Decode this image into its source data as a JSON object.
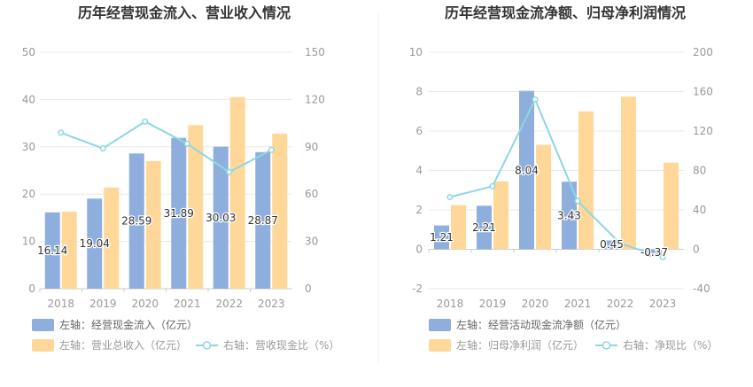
{
  "charts": [
    {
      "title": "历年经营现金流入、营业收入情况",
      "chart_data": {
        "type": "bar",
        "categories": [
          "2018",
          "2019",
          "2020",
          "2021",
          "2022",
          "2023"
        ],
        "y_left": {
          "min": 0,
          "max": 50,
          "ticks": [
            0,
            10,
            20,
            30,
            40,
            50
          ]
        },
        "y_right": {
          "min": 0,
          "max": 150,
          "ticks": [
            0,
            30,
            60,
            90,
            120,
            150
          ]
        },
        "series": [
          {
            "name": "左轴：经营现金流入（亿元）",
            "type": "bar",
            "axis": "left",
            "color": "#8eaede",
            "values": [
              16.14,
              19.04,
              28.59,
              31.89,
              30.03,
              28.87
            ],
            "labels_shown": true
          },
          {
            "name": "左轴：营业总收入（亿元）",
            "type": "bar",
            "axis": "left",
            "color": "#ffd899",
            "values": [
              16.3,
              21.4,
              27.0,
              34.6,
              40.5,
              32.8
            ],
            "labels_shown": false
          },
          {
            "name": "右轴：营收现金比（%）",
            "type": "line",
            "axis": "right",
            "color": "#8dd7df",
            "values": [
              99,
              89,
              106,
              92,
              74,
              88
            ],
            "labels_shown": false
          }
        ],
        "grid": true,
        "legend_position": "bottom"
      }
    },
    {
      "title": "历年经营现金流净额、归母净利润情况",
      "chart_data": {
        "type": "bar",
        "categories": [
          "2018",
          "2019",
          "2020",
          "2021",
          "2022",
          "2023"
        ],
        "y_left": {
          "min": -2,
          "max": 10,
          "ticks": [
            -2,
            0,
            2,
            4,
            6,
            8,
            10
          ]
        },
        "y_right": {
          "min": -40,
          "max": 200,
          "ticks": [
            -40,
            0,
            40,
            80,
            120,
            160,
            200
          ]
        },
        "series": [
          {
            "name": "左轴：经营活动现金流净额（亿元）",
            "type": "bar",
            "axis": "left",
            "color": "#8eaede",
            "values": [
              1.21,
              2.21,
              8.04,
              3.43,
              0.45,
              -0.37
            ],
            "labels_shown": true
          },
          {
            "name": "左轴：归母净利润（亿元）",
            "type": "bar",
            "axis": "left",
            "color": "#ffd899",
            "values": [
              2.25,
              3.45,
              5.3,
              7.0,
              7.75,
              4.4
            ],
            "labels_shown": false
          },
          {
            "name": "右轴：净现比（%）",
            "type": "line",
            "axis": "right",
            "color": "#8dd7df",
            "values": [
              53,
              64,
              152,
              49,
              6,
              -8
            ],
            "labels_shown": false
          }
        ],
        "grid": true,
        "legend_position": "bottom"
      }
    }
  ]
}
